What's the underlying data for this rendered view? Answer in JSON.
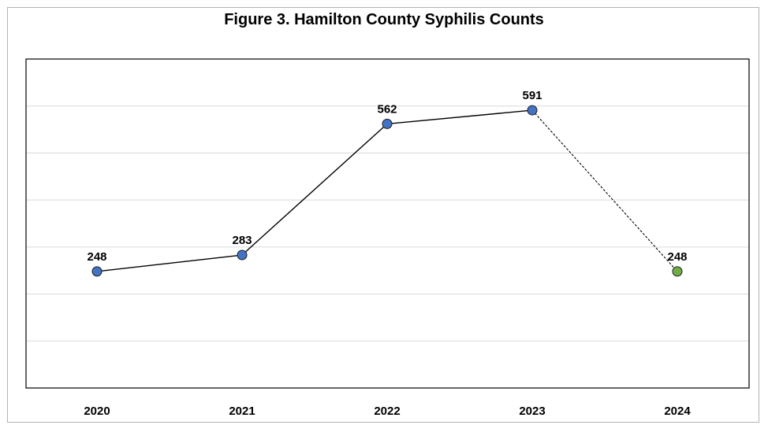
{
  "chart_data": {
    "type": "line",
    "title": "Figure 3. Hamilton County Syphilis Counts",
    "xlabel": "",
    "ylabel": "",
    "categories": [
      "2020",
      "2021",
      "2022",
      "2023",
      "2024"
    ],
    "values": [
      248,
      283,
      562,
      591,
      248
    ],
    "data_labels": [
      "248",
      "283",
      "562",
      "591",
      "248"
    ],
    "ylim": [
      0,
      700
    ],
    "gridlines": [
      100,
      200,
      300,
      400,
      500,
      600
    ],
    "grid": true,
    "legend": "none",
    "segment_styles": [
      "solid",
      "solid",
      "solid",
      "dashed"
    ],
    "colors": {
      "marker_default": "#4472c4",
      "marker_last": "#70ad47",
      "line": "#000000",
      "grid": "#d9d9d9",
      "axis": "#000000"
    }
  }
}
